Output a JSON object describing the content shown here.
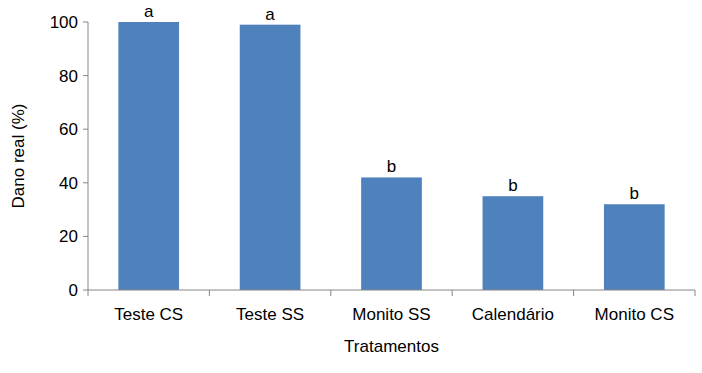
{
  "chart_data": {
    "type": "bar",
    "x_label": "Tratamentos",
    "y_label": "Dano real (%)",
    "categories": [
      "Teste CS",
      "Teste SS",
      "Monito SS",
      "Calendário",
      "Monito CS"
    ],
    "values": [
      100,
      99,
      42,
      35,
      32
    ],
    "annotations": [
      "a",
      "a",
      "b",
      "b",
      "b"
    ],
    "color": "#4f81bd",
    "ylim": [
      0,
      100
    ],
    "yticks": [
      0,
      20,
      40,
      60,
      80,
      100
    ],
    "grid": false
  }
}
